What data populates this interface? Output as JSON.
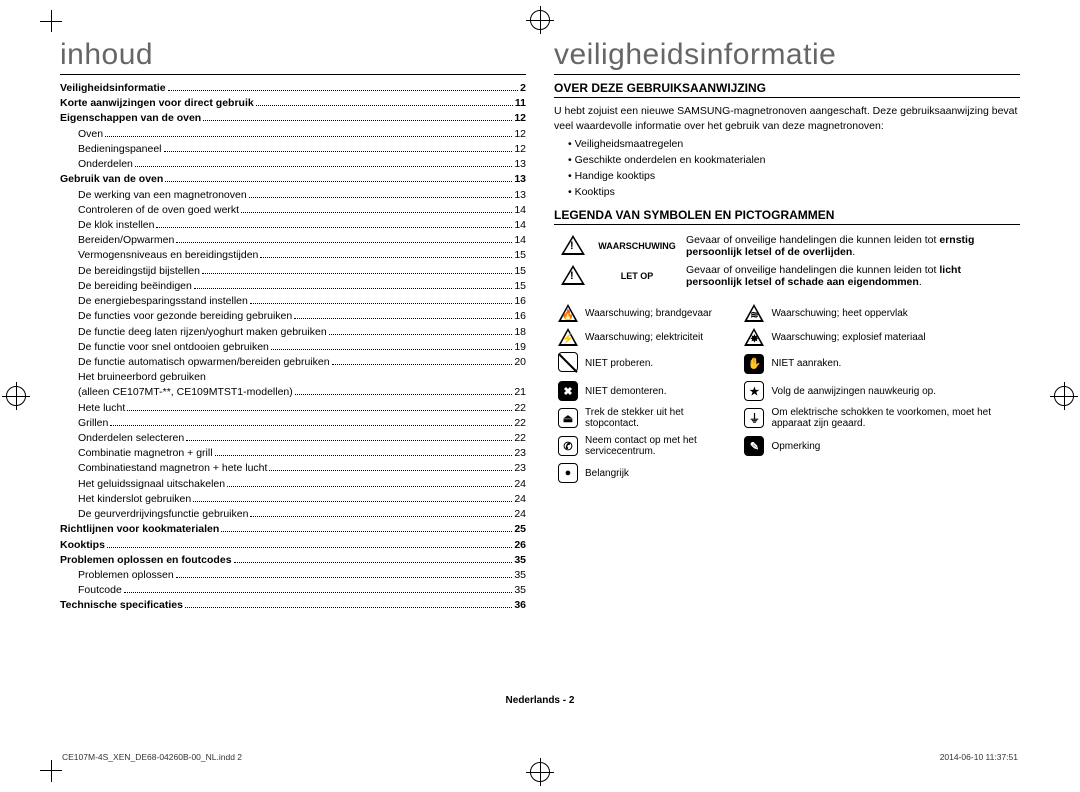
{
  "left": {
    "heading": "inhoud",
    "toc": [
      {
        "label": "Veiligheidsinformatie",
        "page": "2",
        "bold": true
      },
      {
        "label": "Korte aanwijzingen voor direct gebruik",
        "page": "11",
        "bold": true
      },
      {
        "label": "Eigenschappen van de oven",
        "page": "12",
        "bold": true
      },
      {
        "label": "Oven",
        "page": "12",
        "sub": true
      },
      {
        "label": "Bedieningspaneel",
        "page": "12",
        "sub": true
      },
      {
        "label": "Onderdelen",
        "page": "13",
        "sub": true
      },
      {
        "label": "Gebruik van de oven",
        "page": "13",
        "bold": true
      },
      {
        "label": "De werking van een magnetronoven",
        "page": "13",
        "sub": true
      },
      {
        "label": "Controleren of de oven goed werkt",
        "page": "14",
        "sub": true
      },
      {
        "label": "De klok instellen",
        "page": "14",
        "sub": true
      },
      {
        "label": "Bereiden/Opwarmen",
        "page": "14",
        "sub": true
      },
      {
        "label": "Vermogensniveaus en bereidingstijden",
        "page": "15",
        "sub": true
      },
      {
        "label": "De bereidingstijd bijstellen",
        "page": "15",
        "sub": true
      },
      {
        "label": "De bereiding beëindigen",
        "page": "15",
        "sub": true
      },
      {
        "label": "De energiebesparingsstand instellen",
        "page": "16",
        "sub": true
      },
      {
        "label": "De functies voor gezonde bereiding gebruiken",
        "page": "16",
        "sub": true
      },
      {
        "label": "De functie deeg laten rijzen/yoghurt maken gebruiken",
        "page": "18",
        "sub": true
      },
      {
        "label": "De functie voor snel ontdooien gebruiken",
        "page": "19",
        "sub": true
      },
      {
        "label": "De functie automatisch opwarmen/bereiden gebruiken",
        "page": "20",
        "sub": true
      },
      {
        "label": "Het bruineerbord gebruiken",
        "page": "",
        "sub": true,
        "nopage": true
      },
      {
        "label": "(alleen CE107MT-**, CE109MTST1-modellen)",
        "page": "21",
        "sub": true
      },
      {
        "label": "Hete lucht",
        "page": "22",
        "sub": true
      },
      {
        "label": "Grillen",
        "page": "22",
        "sub": true
      },
      {
        "label": "Onderdelen selecteren",
        "page": "22",
        "sub": true
      },
      {
        "label": "Combinatie magnetron + grill",
        "page": "23",
        "sub": true
      },
      {
        "label": "Combinatiestand magnetron + hete lucht",
        "page": "23",
        "sub": true
      },
      {
        "label": "Het geluidssignaal uitschakelen",
        "page": "24",
        "sub": true
      },
      {
        "label": "Het kinderslot gebruiken",
        "page": "24",
        "sub": true
      },
      {
        "label": "De geurverdrijvingsfunctie gebruiken",
        "page": "24",
        "sub": true
      },
      {
        "label": "Richtlijnen voor kookmaterialen",
        "page": "25",
        "bold": true
      },
      {
        "label": "Kooktips",
        "page": "26",
        "bold": true
      },
      {
        "label": "Problemen oplossen en foutcodes",
        "page": "35",
        "bold": true
      },
      {
        "label": "Problemen oplossen",
        "page": "35",
        "sub": true
      },
      {
        "label": "Foutcode",
        "page": "35",
        "sub": true
      },
      {
        "label": "Technische specificaties",
        "page": "36",
        "bold": true
      }
    ]
  },
  "right": {
    "heading": "veiligheidsinformatie",
    "section1": {
      "title": "OVER DEZE GEBRUIKSAANWIJZING",
      "intro": "U hebt zojuist een nieuwe SAMSUNG-magnetronoven aangeschaft. Deze gebruiksaanwijzing bevat veel waardevolle informatie over het gebruik van deze magnetronoven:",
      "bullets": [
        "Veiligheidsmaatregelen",
        "Geschikte onderdelen en kookmaterialen",
        "Handige kooktips",
        "Kooktips"
      ]
    },
    "section2": {
      "title": "LEGENDA VAN SYMBOLEN EN PICTOGRAMMEN",
      "warn": {
        "label": "WAARSCHUWING",
        "text_pre": "Gevaar of onveilige handelingen die kunnen leiden tot ",
        "text_bold": "ernstig persoonlijk letsel of de overlijden",
        "text_post": "."
      },
      "caution": {
        "label": "LET OP",
        "text_pre": "Gevaar of onveilige handelingen die kunnen leiden tot ",
        "text_bold": "licht persoonlijk letsel of schade aan eigendommen",
        "text_post": "."
      },
      "icons": [
        {
          "l_glyph": "🔥",
          "l_txt": "Waarschuwing; brandgevaar",
          "r_glyph": "≋",
          "r_txt": "Waarschuwing; heet oppervlak",
          "tri": true
        },
        {
          "l_glyph": "⚡",
          "l_txt": "Waarschuwing; elektriciteit",
          "r_glyph": "✸",
          "r_txt": "Waarschuwing; explosief materiaal",
          "tri": true
        },
        {
          "l_glyph": "",
          "l_txt": "NIET proberen.",
          "r_glyph": "✋",
          "r_txt": "NIET aanraken.",
          "slash": true,
          "rblack": true
        },
        {
          "l_glyph": "✖",
          "l_txt": "NIET demonteren.",
          "r_glyph": "★",
          "r_txt": "Volg de aanwijzingen nauwkeurig op.",
          "lblack": true
        },
        {
          "l_glyph": "⏏",
          "l_txt": "Trek de stekker uit het stopcontact.",
          "r_glyph": "⏚",
          "r_txt": "Om elektrische schokken te voorkomen, moet het apparaat zijn geaard."
        },
        {
          "l_glyph": "✆",
          "l_txt": "Neem contact op met het servicecentrum.",
          "r_glyph": "✎",
          "r_txt": "Opmerking",
          "rblack": true
        },
        {
          "l_glyph": "●",
          "l_txt": "Belangrijk",
          "single": true
        }
      ]
    }
  },
  "footer": "Nederlands - 2",
  "printfoot": {
    "left": "CE107M-4S_XEN_DE68-04260B-00_NL.indd   2",
    "right": "2014-06-10   11:37:51"
  }
}
